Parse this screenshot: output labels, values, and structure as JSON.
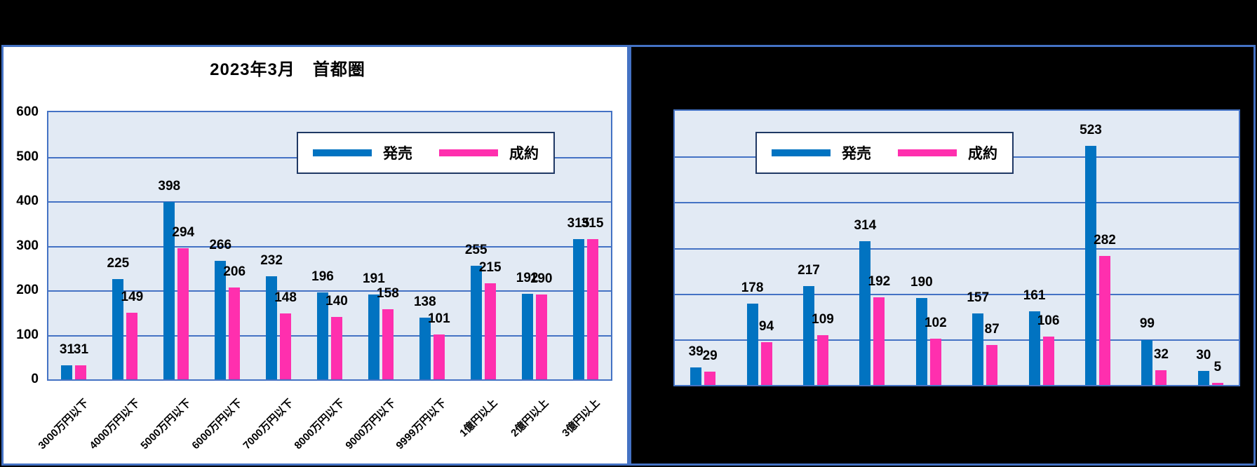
{
  "window": {
    "page_bg": "#000000",
    "chart_frame_color": "#4472C4",
    "plot_bg": "#E2EAF4",
    "gridline_color": "#4472C4",
    "legend_border_color": "#1F3864",
    "left_chart_bg": "#FFFFFF"
  },
  "chart_data": [
    {
      "type": "bar",
      "title": "2023年3月　首都圏",
      "categories": [
        "3000万円以下",
        "4000万円以下",
        "5000万円以下",
        "6000万円以下",
        "7000万円以下",
        "8000万円以下",
        "9000万円以下",
        "9999万円以下",
        "1億円以上",
        "2億円以上",
        "3億円以上"
      ],
      "series": [
        {
          "name": "発売",
          "color": "#0173C1",
          "values": [
            31,
            225,
            398,
            266,
            232,
            196,
            191,
            138,
            255,
            192,
            315
          ]
        },
        {
          "name": "成約",
          "color": "#FF2FAE",
          "values": [
            31,
            149,
            294,
            206,
            148,
            140,
            158,
            101,
            215,
            190,
            315
          ]
        }
      ],
      "ylim": [
        0,
        600
      ],
      "ytick_step": 100,
      "yticks": [
        "0",
        "100",
        "200",
        "300",
        "400",
        "500",
        "600"
      ],
      "show_ytick_labels": true,
      "show_category_labels": true,
      "grid": true,
      "data_labels": true,
      "legend": {
        "entries": [
          "発売",
          "成約"
        ],
        "position": "top-center"
      }
    },
    {
      "type": "bar",
      "title": "",
      "series": [
        {
          "name": "発売",
          "color": "#0173C1",
          "values": [
            39,
            178,
            217,
            314,
            190,
            157,
            161,
            523,
            99,
            30
          ]
        },
        {
          "name": "成約",
          "color": "#FF2FAE",
          "values": [
            29,
            94,
            109,
            192,
            102,
            87,
            106,
            282,
            32,
            5
          ]
        }
      ],
      "ylim": [
        0,
        600
      ],
      "ytick_step": 100,
      "show_ytick_labels": false,
      "show_category_labels": false,
      "grid": true,
      "data_labels": true,
      "legend": {
        "entries": [
          "発売",
          "成約"
        ],
        "position": "upper-left-of-plot"
      }
    }
  ]
}
